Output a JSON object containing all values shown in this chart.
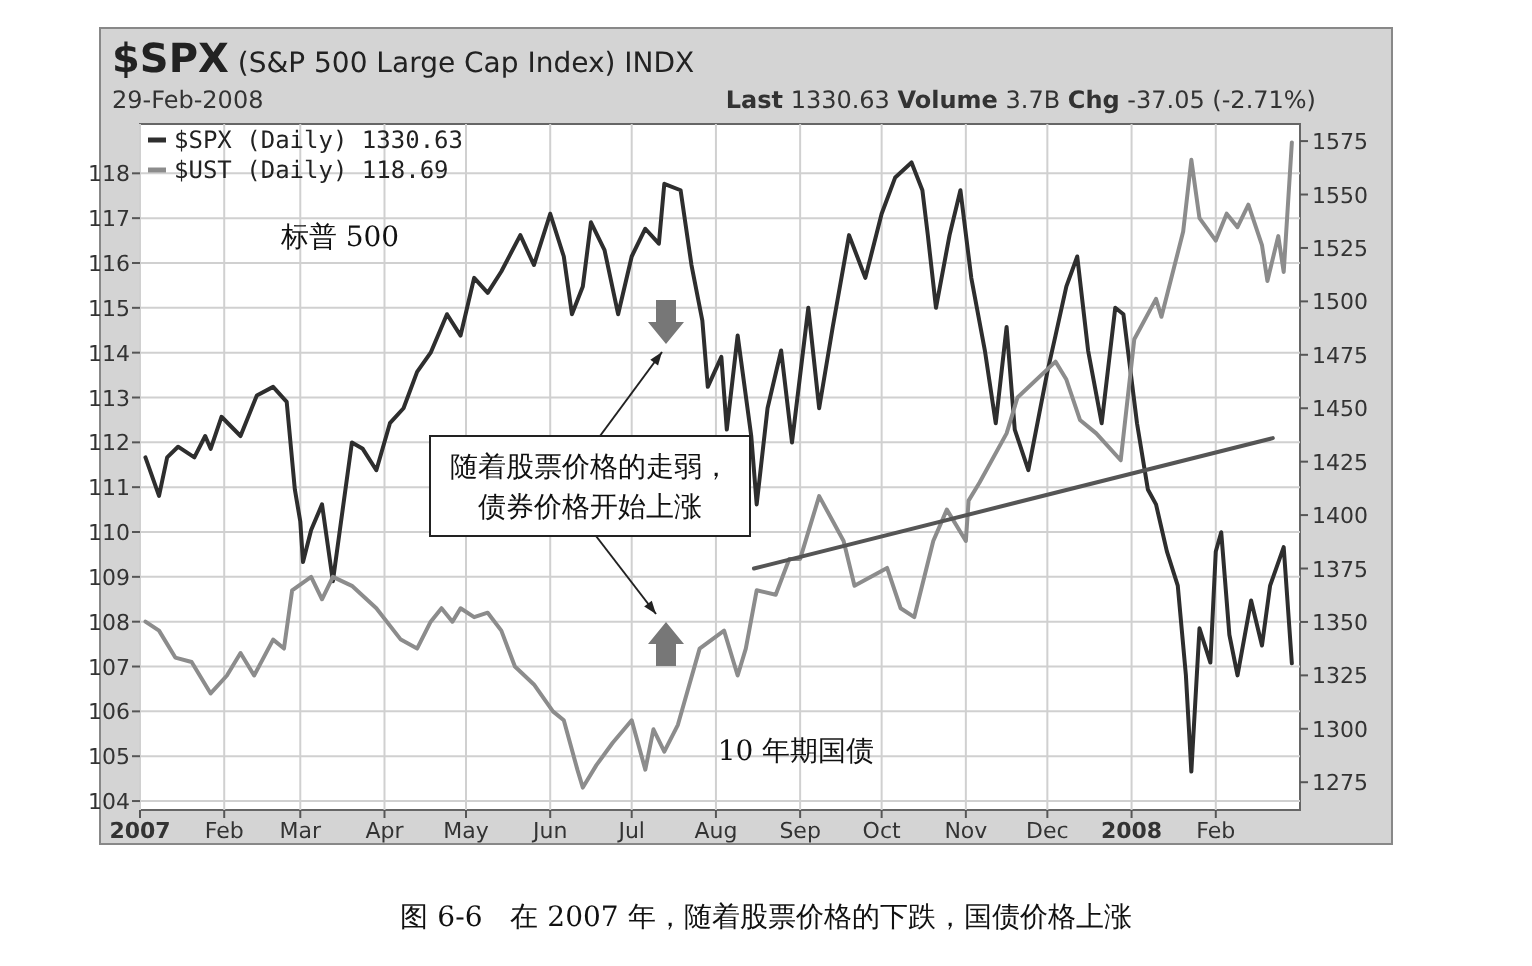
{
  "chart_data": {
    "type": "line",
    "title": "**$SPX** (S&P 500 Large Cap Index) INDX",
    "subtitle": "29-Feb-2008",
    "annotations": [
      "**Last** 1330.63  **Volume** 3.7B  **Chg** -37.05 (-2.71%)",
      "随着股票价格的走弱，债券价格开始上涨",
      "图 6-6　在 2007 年，随着股票价格的下跌，国债价格上涨",
      "标普 500",
      "10 年期国债"
    ],
    "xlim": [
      "2007-01-01",
      "2008-03-03"
    ],
    "xticks": [
      {
        "value": "2007-01-01",
        "label": "2007"
      },
      {
        "value": "2007-02-01",
        "label": "Feb"
      },
      {
        "value": "2007-03-01",
        "label": "Mar"
      },
      {
        "value": "2007-04-01",
        "label": "Apr"
      },
      {
        "value": "2007-05-01",
        "label": "May"
      },
      {
        "value": "2007-06-01",
        "label": "Jun"
      },
      {
        "value": "2007-07-01",
        "label": "Jul"
      },
      {
        "value": "2007-08-01",
        "label": "Aug"
      },
      {
        "value": "2007-09-01",
        "label": "Sep"
      },
      {
        "value": "2007-10-01",
        "label": "Oct"
      },
      {
        "value": "2007-11-01",
        "label": "Nov"
      },
      {
        "value": "2007-12-01",
        "label": "Dec"
      },
      {
        "value": "2008-01-01",
        "label": "2008"
      },
      {
        "value": "2008-02-01",
        "label": "Feb"
      }
    ],
    "ylim": [
      103.8,
      119.1
    ],
    "yticks": [
      104,
      105,
      106,
      107,
      108,
      109,
      110,
      111,
      112,
      113,
      114,
      115,
      116,
      117,
      118
    ],
    "y2lim": [
      1262,
      1583
    ],
    "y2ticks": [
      1275,
      1300,
      1325,
      1350,
      1375,
      1400,
      1425,
      1450,
      1475,
      1500,
      1525,
      1550,
      1575
    ],
    "grid": true,
    "legend": "top left",
    "marker": "none",
    "line_style": "solid",
    "series": [
      {
        "name": "$SPX (Daily) 1330.63",
        "color": "#2e2e2e",
        "axis": "y2",
        "x": [
          "2007-01-03",
          "2007-01-08",
          "2007-01-11",
          "2007-01-15",
          "2007-01-21",
          "2007-01-25",
          "2007-01-27",
          "2007-01-31",
          "2007-02-07",
          "2007-02-13",
          "2007-02-19",
          "2007-02-24",
          "2007-02-27",
          "2007-03-01",
          "2007-03-02",
          "2007-03-05",
          "2007-03-09",
          "2007-03-13",
          "2007-03-16",
          "2007-03-20",
          "2007-03-24",
          "2007-03-29",
          "2007-04-03",
          "2007-04-08",
          "2007-04-13",
          "2007-04-18",
          "2007-04-24",
          "2007-04-29",
          "2007-05-04",
          "2007-05-09",
          "2007-05-14",
          "2007-05-21",
          "2007-05-26",
          "2007-06-01",
          "2007-06-06",
          "2007-06-09",
          "2007-06-13",
          "2007-06-16",
          "2007-06-21",
          "2007-06-26",
          "2007-07-01",
          "2007-07-06",
          "2007-07-11",
          "2007-07-13",
          "2007-07-19",
          "2007-07-23",
          "2007-07-27",
          "2007-07-29",
          "2007-08-03",
          "2007-08-05",
          "2007-08-09",
          "2007-08-14",
          "2007-08-16",
          "2007-08-20",
          "2007-08-25",
          "2007-08-29",
          "2007-09-04",
          "2007-09-08",
          "2007-09-13",
          "2007-09-19",
          "2007-09-25",
          "2007-10-01",
          "2007-10-06",
          "2007-10-12",
          "2007-10-16",
          "2007-10-18",
          "2007-10-21",
          "2007-10-26",
          "2007-10-30",
          "2007-11-03",
          "2007-11-08",
          "2007-11-12",
          "2007-11-16",
          "2007-11-19",
          "2007-11-24",
          "2007-12-01",
          "2007-12-04",
          "2007-12-08",
          "2007-12-12",
          "2007-12-16",
          "2007-12-21",
          "2007-12-26",
          "2007-12-29",
          "2008-01-03",
          "2008-01-07",
          "2008-01-10",
          "2008-01-14",
          "2008-01-18",
          "2008-01-21",
          "2008-01-23",
          "2008-01-26",
          "2008-01-30",
          "2008-02-01",
          "2008-02-03",
          "2008-02-06",
          "2008-02-09",
          "2008-02-14",
          "2008-02-18",
          "2008-02-21",
          "2008-02-26",
          "2008-02-29"
        ],
        "values": [
          1427,
          1409,
          1427,
          1432,
          1427,
          1437,
          1431,
          1446,
          1437,
          1456,
          1460,
          1453,
          1412,
          1397,
          1378,
          1393,
          1405,
          1369,
          1397,
          1434,
          1431,
          1421,
          1443,
          1450,
          1467,
          1476,
          1494,
          1484,
          1511,
          1504,
          1514,
          1531,
          1517,
          1541,
          1521,
          1494,
          1507,
          1537,
          1524,
          1494,
          1521,
          1534,
          1527,
          1555,
          1552,
          1517,
          1491,
          1460,
          1474,
          1440,
          1484,
          1437,
          1405,
          1450,
          1477,
          1434,
          1497,
          1450,
          1488,
          1531,
          1511,
          1541,
          1558,
          1565,
          1552,
          1531,
          1497,
          1531,
          1552,
          1511,
          1477,
          1443,
          1488,
          1440,
          1421,
          1467,
          1484,
          1507,
          1521,
          1477,
          1443,
          1497,
          1494,
          1443,
          1412,
          1405,
          1383,
          1367,
          1325,
          1280,
          1347,
          1331,
          1383,
          1392,
          1344,
          1325,
          1360,
          1339,
          1367,
          1385,
          1330.63
        ]
      },
      {
        "name": "$UST (Daily) 118.69",
        "color": "#8c8c8c",
        "x": [
          "2007-01-03",
          "2007-01-08",
          "2007-01-14",
          "2007-01-20",
          "2007-01-27",
          "2007-02-02",
          "2007-02-07",
          "2007-02-12",
          "2007-02-19",
          "2007-02-23",
          "2007-02-26",
          "2007-03-05",
          "2007-03-09",
          "2007-03-13",
          "2007-03-20",
          "2007-03-29",
          "2007-04-07",
          "2007-04-13",
          "2007-04-18",
          "2007-04-22",
          "2007-04-26",
          "2007-04-29",
          "2007-05-04",
          "2007-05-09",
          "2007-05-14",
          "2007-05-19",
          "2007-05-26",
          "2007-06-02",
          "2007-06-06",
          "2007-06-11",
          "2007-06-13",
          "2007-06-18",
          "2007-06-24",
          "2007-07-01",
          "2007-07-06",
          "2007-07-09",
          "2007-07-13",
          "2007-07-18",
          "2007-07-26",
          "2007-08-04",
          "2007-08-09",
          "2007-08-12",
          "2007-08-16",
          "2007-08-23",
          "2007-08-28",
          "2007-09-01",
          "2007-09-08",
          "2007-09-17",
          "2007-09-21",
          "2007-10-03",
          "2007-10-08",
          "2007-10-13",
          "2007-10-20",
          "2007-10-25",
          "2007-11-01",
          "2007-11-02",
          "2007-11-06",
          "2007-11-16",
          "2007-11-20",
          "2007-12-04",
          "2007-12-08",
          "2007-12-13",
          "2007-12-19",
          "2007-12-28",
          "2008-01-02",
          "2008-01-10",
          "2008-01-12",
          "2008-01-20",
          "2008-01-23",
          "2008-01-26",
          "2008-02-01",
          "2008-02-05",
          "2008-02-09",
          "2008-02-13",
          "2008-02-18",
          "2008-02-20",
          "2008-02-24",
          "2008-02-26",
          "2008-02-29"
        ],
        "values": [
          108.0,
          107.8,
          107.2,
          107.1,
          106.4,
          106.8,
          107.3,
          106.8,
          107.6,
          107.4,
          108.7,
          109.0,
          108.5,
          109.0,
          108.8,
          108.3,
          107.6,
          107.4,
          108.0,
          108.3,
          108.0,
          108.3,
          108.1,
          108.2,
          107.8,
          107.0,
          106.6,
          106.0,
          105.8,
          104.7,
          104.3,
          104.8,
          105.3,
          105.8,
          104.7,
          105.6,
          105.1,
          105.7,
          107.4,
          107.8,
          106.8,
          107.4,
          108.7,
          108.6,
          109.4,
          109.4,
          110.8,
          109.8,
          108.8,
          109.2,
          108.3,
          108.1,
          109.8,
          110.5,
          109.8,
          110.7,
          111.1,
          112.2,
          113.0,
          113.8,
          113.4,
          112.5,
          112.2,
          111.6,
          114.3,
          115.2,
          114.8,
          116.7,
          118.3,
          117.0,
          116.5,
          117.1,
          116.8,
          117.3,
          116.4,
          115.6,
          116.6,
          115.8,
          118.69
        ]
      },
      {
        "color": "#555555",
        "axis": "y2",
        "x": [
          "2007-08-15",
          "2008-02-22"
        ],
        "values": [
          1375,
          1436
        ]
      }
    ]
  }
}
